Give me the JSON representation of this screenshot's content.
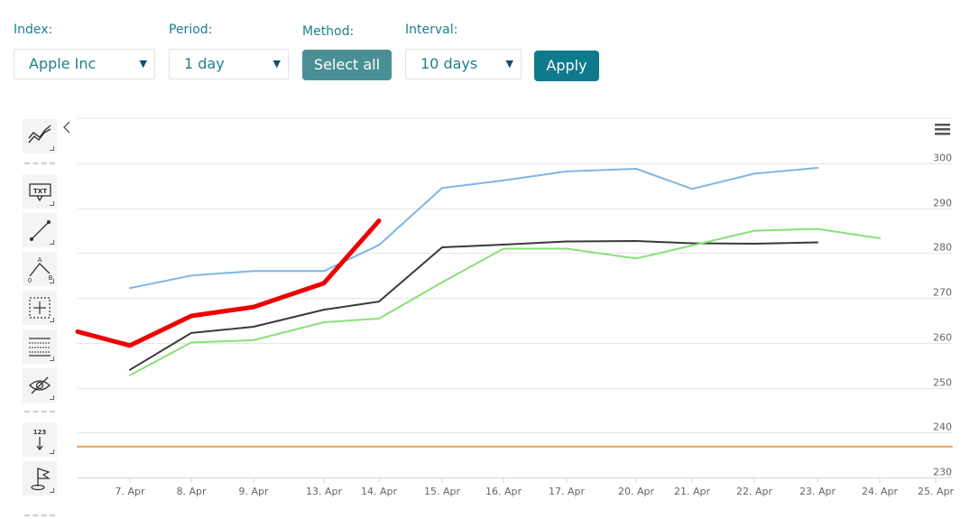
{
  "controls": {
    "index": {
      "label": "Index:",
      "value": "Apple Inc"
    },
    "period": {
      "label": "Period:",
      "value": "1 day"
    },
    "method": {
      "label": "Method:",
      "button": "Select all"
    },
    "interval": {
      "label": "Interval:",
      "value": "10 days"
    },
    "apply": "Apply"
  },
  "toolbar": {
    "collapse_icon": "chevron-left-icon",
    "menu_icon": "hamburger-menu-icon",
    "tools": [
      "indicators-icon",
      "text-annotation-icon",
      "line-tool-icon",
      "fibonacci-tool-icon",
      "crosshair-measure-icon",
      "grid-lines-icon",
      "hide-visibility-icon",
      "price-label-icon",
      "flag-icon"
    ]
  },
  "chart_data": {
    "type": "line",
    "categories": [
      "7. Apr",
      "8. Apr",
      "9. Apr",
      "13. Apr",
      "14. Apr",
      "15. Apr",
      "16. Apr",
      "17. Apr",
      "20. Apr",
      "21. Apr",
      "22. Apr",
      "23. Apr",
      "24. Apr",
      "25. Apr"
    ],
    "yticks": [
      230,
      240,
      250,
      260,
      270,
      280,
      290,
      300
    ],
    "ylim": [
      229,
      307
    ],
    "grid": true,
    "axis_side": "right",
    "lead_in": {
      "color": "#ee0000",
      "value": 262.5
    },
    "series": [
      {
        "color": "#7eb6e4",
        "width": 2,
        "values": [
          272.2,
          275.0,
          276.0,
          276.0,
          281.8,
          294.5,
          296.2,
          298.2,
          298.8,
          294.3,
          297.7,
          299.0,
          null,
          null
        ]
      },
      {
        "color": "#3a3a3a",
        "width": 2,
        "values": [
          254.0,
          262.2,
          263.6,
          267.4,
          269.2,
          281.3,
          281.9,
          282.6,
          282.7,
          282.2,
          282.1,
          282.4,
          null,
          null
        ]
      },
      {
        "color": "#8ae07a",
        "width": 2,
        "values": [
          252.8,
          260.1,
          260.6,
          264.6,
          265.4,
          273.5,
          281.0,
          281.0,
          278.8,
          281.7,
          285.0,
          285.4,
          283.3,
          null
        ]
      },
      {
        "color": "#ee0000",
        "width": 5,
        "values": [
          259.4,
          266.0,
          268.0,
          273.3,
          287.2,
          null,
          null,
          null,
          null,
          null,
          null,
          null,
          null,
          null
        ]
      },
      {
        "color": "#f0a150",
        "width": 2,
        "values": [
          236.9,
          236.9,
          236.9,
          236.9,
          236.9,
          236.9,
          236.9,
          236.9,
          236.9,
          236.9,
          236.9,
          236.9,
          236.9,
          236.9
        ]
      }
    ]
  }
}
